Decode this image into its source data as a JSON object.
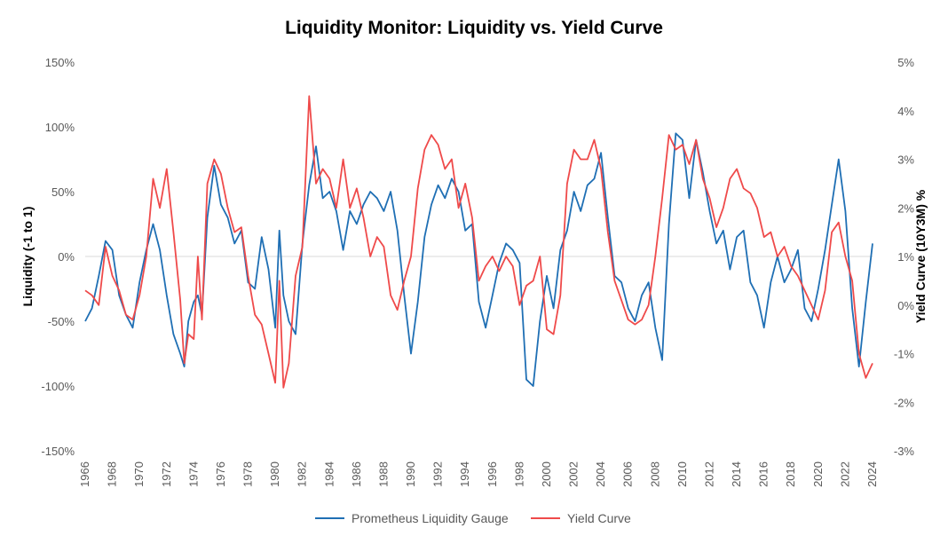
{
  "chart_data": {
    "type": "line",
    "title": "Liquidity Monitor: Liquidity vs. Yield Curve",
    "ylabel": "Liquidity (-1 to 1)",
    "y2label": "Yield Curve (10Y3M) %",
    "ylim": [
      -1.5,
      1.5
    ],
    "y2lim": [
      -3,
      5
    ],
    "xlim": [
      1966,
      2024
    ],
    "y_ticks": [
      1.5,
      1.0,
      0.5,
      0,
      -0.5,
      -1.0,
      -1.5
    ],
    "y_tick_labels": [
      "150%",
      "100%",
      "50%",
      "0%",
      "-50%",
      "-100%",
      "-150%"
    ],
    "y2_ticks": [
      5,
      4,
      3,
      2,
      1,
      0,
      -1,
      -2,
      -3
    ],
    "y2_tick_labels": [
      "5%",
      "4%",
      "3%",
      "2%",
      "1%",
      "0%",
      "-1%",
      "-2%",
      "-3%"
    ],
    "x_tick_labels": [
      "1966",
      "1968",
      "1970",
      "1972",
      "1974",
      "1976",
      "1978",
      "1980",
      "1982",
      "1984",
      "1986",
      "1988",
      "1990",
      "1992",
      "1994",
      "1996",
      "1998",
      "2000",
      "2002",
      "2004",
      "2006",
      "2008",
      "2010",
      "2012",
      "2014",
      "2016",
      "2018",
      "2020",
      "2022",
      "2024"
    ],
    "zero_line": true,
    "legend_position": "bottom",
    "series": [
      {
        "name": "Prometheus Liquidity Gauge",
        "axis": "left",
        "color": "#1f6fb4",
        "x": [
          1966,
          1966.5,
          1967,
          1967.5,
          1968,
          1968.5,
          1969,
          1969.5,
          1970,
          1970.5,
          1971,
          1971.5,
          1972,
          1972.5,
          1973,
          1973.3,
          1973.6,
          1974,
          1974.3,
          1974.6,
          1975,
          1975.5,
          1976,
          1976.5,
          1977,
          1977.5,
          1978,
          1978.5,
          1979,
          1979.5,
          1980,
          1980.3,
          1980.6,
          1981,
          1981.5,
          1982,
          1982.5,
          1983,
          1983.5,
          1984,
          1984.5,
          1985,
          1985.5,
          1986,
          1986.5,
          1987,
          1987.5,
          1988,
          1988.5,
          1989,
          1989.5,
          1990,
          1990.5,
          1991,
          1991.5,
          1992,
          1992.5,
          1993,
          1993.5,
          1994,
          1994.5,
          1995,
          1995.5,
          1996,
          1996.5,
          1997,
          1997.5,
          1998,
          1998.5,
          1999,
          1999.5,
          2000,
          2000.5,
          2001,
          2001.5,
          2002,
          2002.5,
          2003,
          2003.5,
          2004,
          2004.5,
          2005,
          2005.5,
          2006,
          2006.5,
          2007,
          2007.5,
          2008,
          2008.5,
          2009,
          2009.5,
          2010,
          2010.5,
          2011,
          2011.5,
          2012,
          2012.5,
          2013,
          2013.5,
          2014,
          2014.5,
          2015,
          2015.5,
          2016,
          2016.5,
          2017,
          2017.5,
          2018,
          2018.5,
          2019,
          2019.5,
          2020,
          2020.5,
          2021,
          2021.5,
          2022,
          2022.5,
          2023,
          2023.5,
          2024
        ],
        "values": [
          -0.5,
          -0.4,
          -0.15,
          0.12,
          0.05,
          -0.3,
          -0.45,
          -0.55,
          -0.2,
          0.05,
          0.25,
          0.05,
          -0.3,
          -0.6,
          -0.75,
          -0.85,
          -0.5,
          -0.35,
          -0.3,
          -0.45,
          0.3,
          0.7,
          0.4,
          0.3,
          0.1,
          0.2,
          -0.2,
          -0.25,
          0.15,
          -0.1,
          -0.55,
          0.2,
          -0.3,
          -0.5,
          -0.6,
          0.1,
          0.55,
          0.85,
          0.45,
          0.5,
          0.35,
          0.05,
          0.35,
          0.25,
          0.4,
          0.5,
          0.45,
          0.35,
          0.5,
          0.2,
          -0.3,
          -0.75,
          -0.35,
          0.15,
          0.4,
          0.55,
          0.45,
          0.6,
          0.5,
          0.2,
          0.25,
          -0.35,
          -0.55,
          -0.3,
          -0.05,
          0.1,
          0.05,
          -0.05,
          -0.95,
          -1.0,
          -0.5,
          -0.15,
          -0.4,
          0.05,
          0.2,
          0.5,
          0.35,
          0.55,
          0.6,
          0.8,
          0.3,
          -0.15,
          -0.2,
          -0.4,
          -0.5,
          -0.3,
          -0.2,
          -0.55,
          -0.8,
          0.25,
          0.95,
          0.9,
          0.45,
          0.9,
          0.65,
          0.35,
          0.1,
          0.2,
          -0.1,
          0.15,
          0.2,
          -0.2,
          -0.3,
          -0.55,
          -0.2,
          0.0,
          -0.2,
          -0.1,
          0.05,
          -0.4,
          -0.5,
          -0.25,
          0.05,
          0.4,
          0.75,
          0.35,
          -0.4,
          -0.85,
          -0.35,
          0.1
        ]
      },
      {
        "name": "Yield Curve",
        "axis": "right",
        "color": "#ef4a4a",
        "x": [
          1966,
          1966.5,
          1967,
          1967.5,
          1968,
          1968.5,
          1969,
          1969.5,
          1970,
          1970.5,
          1971,
          1971.5,
          1972,
          1972.5,
          1973,
          1973.3,
          1973.6,
          1974,
          1974.3,
          1974.6,
          1975,
          1975.5,
          1976,
          1976.5,
          1977,
          1977.5,
          1978,
          1978.5,
          1979,
          1979.5,
          1980,
          1980.3,
          1980.6,
          1981,
          1981.5,
          1982,
          1982.5,
          1983,
          1983.5,
          1984,
          1984.5,
          1985,
          1985.5,
          1986,
          1986.5,
          1987,
          1987.5,
          1988,
          1988.5,
          1989,
          1989.5,
          1990,
          1990.5,
          1991,
          1991.5,
          1992,
          1992.5,
          1993,
          1993.5,
          1994,
          1994.5,
          1995,
          1995.5,
          1996,
          1996.5,
          1997,
          1997.5,
          1998,
          1998.5,
          1999,
          1999.5,
          2000,
          2000.5,
          2001,
          2001.5,
          2002,
          2002.5,
          2003,
          2003.5,
          2004,
          2004.5,
          2005,
          2005.5,
          2006,
          2006.5,
          2007,
          2007.5,
          2008,
          2008.5,
          2009,
          2009.5,
          2010,
          2010.5,
          2011,
          2011.5,
          2012,
          2012.5,
          2013,
          2013.5,
          2014,
          2014.5,
          2015,
          2015.5,
          2016,
          2016.5,
          2017,
          2017.5,
          2018,
          2018.5,
          2019,
          2019.5,
          2020,
          2020.5,
          2021,
          2021.5,
          2022,
          2022.5,
          2023,
          2023.5,
          2024
        ],
        "values": [
          0.3,
          0.2,
          0.0,
          1.2,
          0.6,
          0.3,
          -0.2,
          -0.3,
          0.2,
          1.0,
          2.6,
          2.0,
          2.8,
          1.5,
          0.1,
          -1.2,
          -0.6,
          -0.7,
          1.0,
          -0.3,
          2.5,
          3.0,
          2.7,
          2.0,
          1.5,
          1.6,
          0.6,
          -0.2,
          -0.4,
          -1.0,
          -1.6,
          0.5,
          -1.7,
          -1.2,
          0.6,
          1.2,
          4.3,
          2.5,
          2.8,
          2.6,
          2.0,
          3.0,
          2.0,
          2.4,
          1.8,
          1.0,
          1.4,
          1.2,
          0.2,
          -0.1,
          0.5,
          1.0,
          2.4,
          3.2,
          3.5,
          3.3,
          2.8,
          3.0,
          2.0,
          2.5,
          1.8,
          0.5,
          0.8,
          1.0,
          0.7,
          1.0,
          0.8,
          0.0,
          0.4,
          0.5,
          1.0,
          -0.5,
          -0.6,
          0.2,
          2.5,
          3.2,
          3.0,
          3.0,
          3.4,
          2.8,
          1.5,
          0.5,
          0.1,
          -0.3,
          -0.4,
          -0.3,
          0.0,
          1.0,
          2.2,
          3.5,
          3.2,
          3.3,
          2.9,
          3.4,
          2.6,
          2.2,
          1.6,
          2.0,
          2.6,
          2.8,
          2.4,
          2.3,
          2.0,
          1.4,
          1.5,
          1.0,
          1.2,
          0.8,
          0.6,
          0.3,
          0.0,
          -0.3,
          0.3,
          1.5,
          1.7,
          1.0,
          0.5,
          -1.0,
          -1.5,
          -1.2
        ]
      }
    ]
  }
}
